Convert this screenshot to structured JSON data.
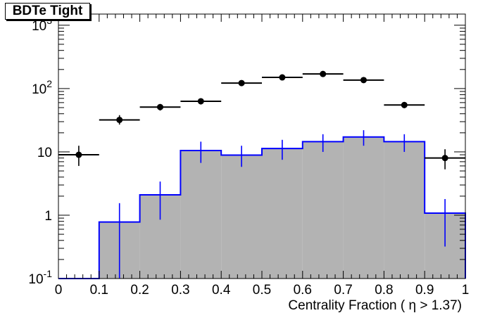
{
  "chart_data": {
    "type": "bar",
    "title": "BDTe Tight",
    "xlabel": "Centrality Fraction ( η > 1.37)",
    "ylabel": "",
    "xlim": [
      0,
      1
    ],
    "ylim": [
      0.1,
      1500
    ],
    "yscale": "log",
    "x_ticks": [
      "0",
      "0.1",
      "0.2",
      "0.3",
      "0.4",
      "0.5",
      "0.6",
      "0.7",
      "0.8",
      "0.9",
      "1"
    ],
    "y_ticks": [
      {
        "value": 0.1,
        "mant": "10",
        "exp": "-1"
      },
      {
        "value": 1,
        "mant": "1",
        "exp": ""
      },
      {
        "value": 10,
        "mant": "10",
        "exp": ""
      },
      {
        "value": 100,
        "mant": "10",
        "exp": "2"
      },
      {
        "value": 1000,
        "mant": "10",
        "exp": "3"
      }
    ],
    "bin_edges": [
      0,
      0.1,
      0.2,
      0.3,
      0.4,
      0.5,
      0.6,
      0.7,
      0.8,
      0.9,
      1.0
    ],
    "series": [
      {
        "style": "filled-histogram",
        "fill": "#b3b3b3",
        "line_color": "#0000ff",
        "values": [
          0.1,
          0.78,
          2.1,
          10.5,
          8.9,
          11.3,
          14.5,
          17.2,
          14.5,
          1.08
        ],
        "err_low": [
          0,
          0.1,
          0.85,
          6.7,
          5.8,
          7.5,
          10.0,
          12.5,
          10.0,
          0.32
        ],
        "err_high": [
          0,
          1.55,
          3.4,
          14.5,
          12.5,
          15.5,
          19.0,
          22.0,
          19.0,
          1.8
        ]
      },
      {
        "style": "points",
        "color": "#000000",
        "values": [
          9.0,
          32,
          51,
          63,
          122,
          150,
          170,
          136,
          55,
          8.0
        ],
        "err_low": [
          6.0,
          27,
          45,
          56,
          115,
          142,
          161,
          127,
          49,
          5.3
        ],
        "err_high": [
          12.5,
          38,
          57,
          70,
          129,
          158,
          179,
          145,
          61,
          11.0
        ]
      }
    ]
  }
}
